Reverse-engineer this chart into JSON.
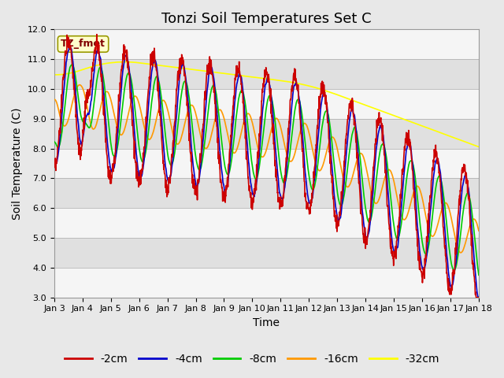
{
  "title": "Tonzi Soil Temperatures Set C",
  "xlabel": "Time",
  "ylabel": "Soil Temperature (C)",
  "ylim": [
    3.0,
    12.0
  ],
  "yticks": [
    3.0,
    4.0,
    5.0,
    6.0,
    7.0,
    8.0,
    9.0,
    10.0,
    11.0,
    12.0
  ],
  "xtick_labels": [
    "Jan 3",
    "Jan 4",
    "Jan 5",
    "Jan 6",
    "Jan 7",
    "Jan 8",
    "Jan 9",
    "Jan 10",
    "Jan 11",
    "Jan 12",
    "Jan 13",
    "Jan 14",
    "Jan 15",
    "Jan 16",
    "Jan 17",
    "Jan 18"
  ],
  "colors": {
    "-2cm": "#cc0000",
    "-4cm": "#0000cc",
    "-8cm": "#00cc00",
    "-16cm": "#ff9900",
    "-32cm": "#ffff00"
  },
  "annotation_text": "TZ_fmet",
  "annotation_color": "#800000",
  "annotation_bg": "#ffffcc",
  "annotation_edge": "#999900",
  "fig_facecolor": "#e8e8e8",
  "stripe_light": "#f5f5f5",
  "stripe_dark": "#e0e0e0",
  "title_fontsize": 13,
  "axis_fontsize": 10,
  "tick_fontsize": 8,
  "legend_fontsize": 10,
  "line_width": 1.2
}
